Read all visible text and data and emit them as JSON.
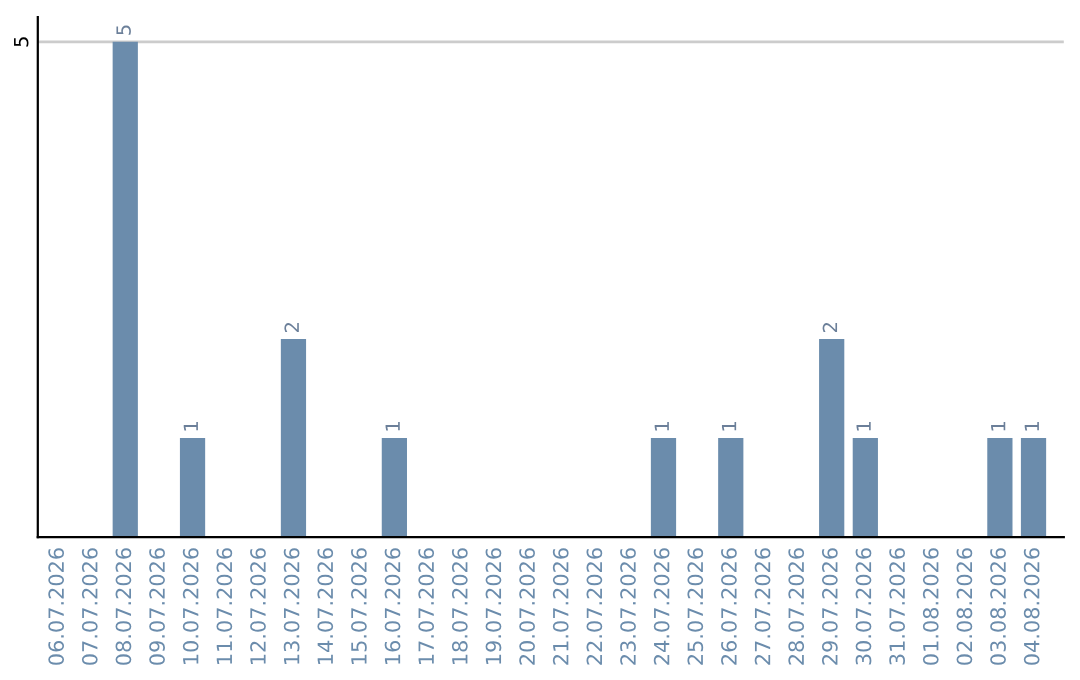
{
  "chart_data": {
    "type": "bar",
    "categories": [
      "06.07.2026",
      "07.07.2026",
      "08.07.2026",
      "09.07.2026",
      "10.07.2026",
      "11.07.2026",
      "12.07.2026",
      "13.07.2026",
      "14.07.2026",
      "15.07.2026",
      "16.07.2026",
      "17.07.2026",
      "18.07.2026",
      "19.07.2026",
      "20.07.2026",
      "21.07.2026",
      "22.07.2026",
      "23.07.2026",
      "24.07.2026",
      "25.07.2026",
      "26.07.2026",
      "27.07.2026",
      "28.07.2026",
      "29.07.2026",
      "30.07.2026",
      "31.07.2026",
      "01.08.2026",
      "02.08.2026",
      "03.08.2026",
      "04.08.2026"
    ],
    "values": [
      0,
      0,
      5,
      0,
      1,
      0,
      0,
      2,
      0,
      0,
      1,
      0,
      0,
      0,
      0,
      0,
      0,
      0,
      1,
      0,
      1,
      0,
      0,
      2,
      1,
      0,
      0,
      0,
      1,
      1
    ],
    "value_labels": [
      null,
      null,
      "5",
      null,
      "1",
      null,
      null,
      "2",
      null,
      null,
      "1",
      null,
      null,
      null,
      null,
      null,
      null,
      null,
      "1",
      null,
      "1",
      null,
      null,
      "2",
      "1",
      null,
      null,
      null,
      "1",
      "1"
    ],
    "color": "#6b8cac",
    "ylim": [
      0,
      5.25
    ],
    "yticks": [
      5
    ],
    "grid": "y",
    "legend": false
  }
}
